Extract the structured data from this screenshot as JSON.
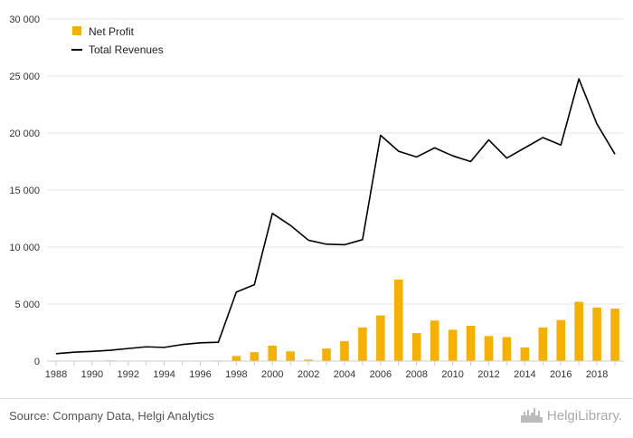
{
  "chart_data": {
    "type": "bar+line",
    "x": [
      1988,
      1989,
      1990,
      1991,
      1992,
      1993,
      1994,
      1995,
      1996,
      1997,
      1998,
      1999,
      2000,
      2001,
      2002,
      2003,
      2004,
      2005,
      2006,
      2007,
      2008,
      2009,
      2010,
      2011,
      2012,
      2013,
      2014,
      2015,
      2016,
      2017,
      2018,
      2019
    ],
    "x_tick_labels": [
      "1988",
      "1990",
      "1992",
      "1994",
      "1996",
      "1998",
      "2000",
      "2002",
      "2004",
      "2006",
      "2008",
      "2010",
      "2012",
      "2014",
      "2016",
      "2018"
    ],
    "y_tick_labels": [
      "0",
      "5 000",
      "10 000",
      "15 000",
      "20 000",
      "25 000",
      "30 000"
    ],
    "ylim": [
      0,
      30000
    ],
    "series": [
      {
        "name": "Net Profit",
        "kind": "bar",
        "color": "#f5b000",
        "values": [
          0,
          0,
          0,
          60,
          0,
          0,
          0,
          0,
          0,
          50,
          450,
          780,
          1350,
          850,
          130,
          1100,
          1750,
          2950,
          4000,
          7150,
          2450,
          3550,
          2750,
          3100,
          2200,
          2100,
          1200,
          2950,
          3600,
          5200,
          4700,
          4600
        ]
      },
      {
        "name": "Total Revenues",
        "kind": "line",
        "color": "#000000",
        "values": [
          650,
          780,
          850,
          950,
          1100,
          1250,
          1200,
          1450,
          1600,
          1650,
          6050,
          6700,
          12950,
          11900,
          10600,
          10250,
          10200,
          10650,
          19800,
          18400,
          17900,
          18700,
          18000,
          17500,
          19400,
          17800,
          18700,
          19600,
          18950,
          24750,
          20800,
          18150
        ]
      }
    ],
    "legend_position": "top-left",
    "grid": "horizontal"
  },
  "footer": {
    "source": "Source: Company Data, Helgi Analytics",
    "brand_name": "HelgiLibrary."
  }
}
